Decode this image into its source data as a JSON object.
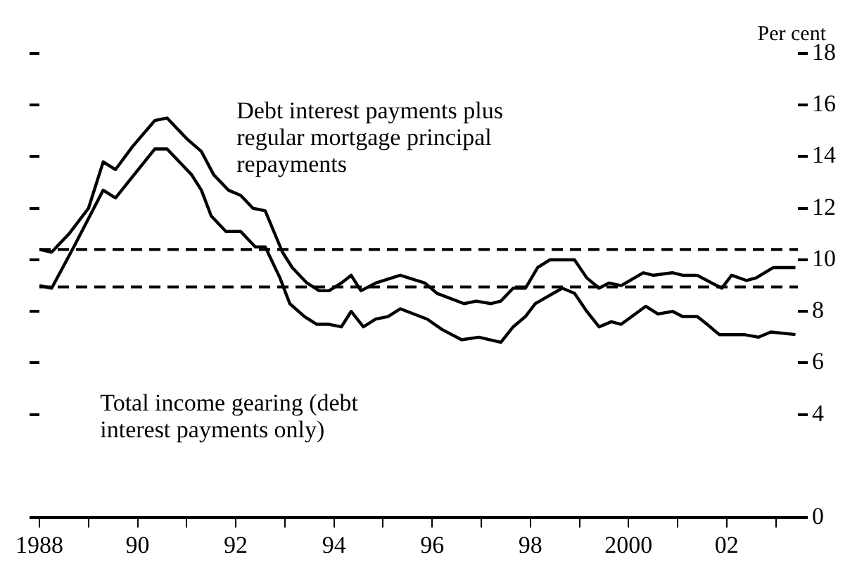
{
  "chart_data": {
    "type": "line",
    "ylabel": "Per cent",
    "series": [
      {
        "name": "Debt interest payments plus regular mortgage principal repayments",
        "color": "#000000",
        "x": [
          1988.0,
          1988.25,
          1988.6,
          1989.0,
          1989.3,
          1989.55,
          1989.9,
          1990.35,
          1990.6,
          1991.0,
          1991.3,
          1991.55,
          1991.85,
          1992.1,
          1992.35,
          1992.6,
          1992.95,
          1993.15,
          1993.45,
          1993.7,
          1993.9,
          1994.15,
          1994.35,
          1994.55,
          1994.85,
          1995.35,
          1995.85,
          1996.1,
          1996.65,
          1996.9,
          1997.2,
          1997.4,
          1997.65,
          1997.9,
          1998.15,
          1998.4,
          1998.9,
          1999.15,
          1999.4,
          1999.6,
          1999.85,
          2000.3,
          2000.5,
          2000.9,
          2001.1,
          2001.4,
          2001.9,
          2002.1,
          2002.4,
          2002.6,
          2002.95,
          2003.4
        ],
        "values": [
          10.4,
          10.3,
          11.0,
          12.0,
          13.8,
          13.5,
          14.4,
          15.4,
          15.5,
          14.7,
          14.2,
          13.3,
          12.7,
          12.5,
          12.0,
          11.9,
          10.3,
          9.7,
          9.1,
          8.8,
          8.8,
          9.1,
          9.4,
          8.8,
          9.1,
          9.4,
          9.1,
          8.7,
          8.3,
          8.4,
          8.3,
          8.4,
          8.9,
          8.9,
          9.7,
          10.0,
          10.0,
          9.3,
          8.9,
          9.1,
          9.0,
          9.5,
          9.4,
          9.5,
          9.4,
          9.4,
          8.9,
          9.4,
          9.2,
          9.3,
          9.7,
          9.7
        ]
      },
      {
        "name": "Total income gearing (debt interest payments only)",
        "color": "#000000",
        "x": [
          1988.0,
          1988.25,
          1988.7,
          1989.3,
          1989.55,
          1990.35,
          1990.6,
          1991.1,
          1991.3,
          1991.5,
          1991.8,
          1992.1,
          1992.4,
          1992.6,
          1992.9,
          1993.1,
          1993.4,
          1993.65,
          1993.9,
          1994.15,
          1994.35,
          1994.6,
          1994.85,
          1995.1,
          1995.35,
          1995.9,
          1996.2,
          1996.6,
          1996.95,
          1997.4,
          1997.65,
          1997.9,
          1998.1,
          1998.65,
          1998.9,
          1999.15,
          1999.4,
          1999.65,
          1999.85,
          2000.35,
          2000.6,
          2000.9,
          2001.1,
          2001.4,
          2001.6,
          2001.85,
          2002.35,
          2002.65,
          2002.9,
          2003.4
        ],
        "values": [
          9.0,
          8.9,
          10.5,
          12.7,
          12.4,
          14.3,
          14.3,
          13.3,
          12.7,
          11.7,
          11.1,
          11.1,
          10.5,
          10.5,
          9.3,
          8.3,
          7.8,
          7.5,
          7.5,
          7.4,
          8.0,
          7.4,
          7.7,
          7.8,
          8.1,
          7.7,
          7.3,
          6.9,
          7.0,
          6.8,
          7.4,
          7.8,
          8.3,
          8.9,
          8.7,
          8.0,
          7.4,
          7.6,
          7.5,
          8.2,
          7.9,
          8.0,
          7.8,
          7.8,
          7.5,
          7.1,
          7.1,
          7.0,
          7.2,
          7.1
        ]
      }
    ],
    "xlim": [
      1988,
      2003.45
    ],
    "xticks": [
      1988,
      {
        "value": 1989,
        "label": null
      },
      {
        "value": 1990,
        "label": "90"
      },
      {
        "value": 1991,
        "label": null
      },
      {
        "value": 1992,
        "label": "92"
      },
      {
        "value": 1993,
        "label": null
      },
      {
        "value": 1994,
        "label": "94"
      },
      {
        "value": 1995,
        "label": null
      },
      {
        "value": 1996,
        "label": "96"
      },
      {
        "value": 1997,
        "label": null
      },
      {
        "value": 1998,
        "label": "98"
      },
      {
        "value": 1999,
        "label": null
      },
      2000,
      {
        "value": 2001,
        "label": null
      },
      {
        "value": 2002,
        "label": "02"
      },
      {
        "value": 2003,
        "label": null
      }
    ],
    "ylim": [
      0,
      18
    ],
    "yticks": [
      0,
      4,
      6,
      8,
      10,
      12,
      14,
      16,
      18
    ],
    "ref_lines": [
      {
        "axis": "y",
        "value": 10.4,
        "color": "#000000",
        "line_style": "dashed"
      },
      {
        "axis": "y",
        "value": 8.95,
        "color": "#000000",
        "line_style": "dashed"
      }
    ],
    "grid": false,
    "marker": "none",
    "line_style": "solid"
  }
}
